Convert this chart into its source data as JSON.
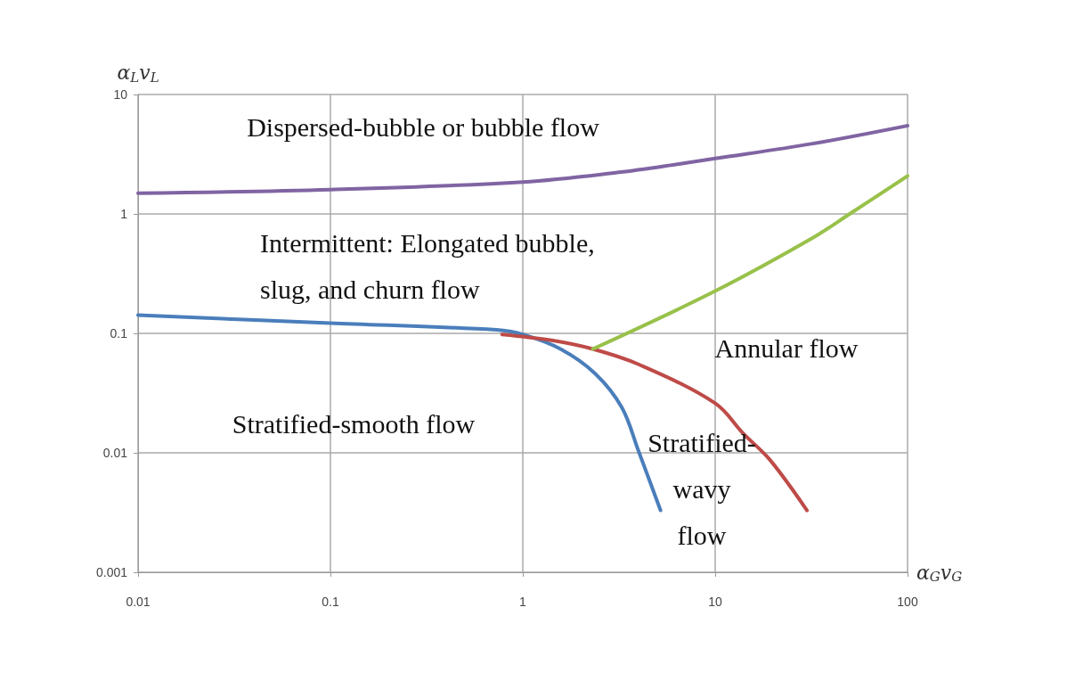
{
  "chart_data": {
    "type": "line",
    "xlabel": "α$_{G}$v$_{G}$",
    "ylabel": "α$_{L}$v$_{L}$",
    "log": "xy",
    "grid": true,
    "marker": "none",
    "line_style": "solid",
    "xlim": [
      0.01,
      100
    ],
    "ylim": [
      0.001,
      10
    ],
    "xticks": [
      0.01,
      0.1,
      1,
      10,
      100
    ],
    "yticks": [
      0.001,
      0.01,
      0.1,
      1,
      10
    ],
    "series": [
      {
        "color": "#8064a2",
        "x": [
          0.01,
          0.1,
          1,
          3.16,
          6.6,
          10,
          31.6,
          100
        ],
        "values": [
          1.49,
          1.6,
          1.85,
          2.23,
          2.63,
          2.91,
          3.86,
          5.48
        ]
      },
      {
        "color": "#4a7ebb",
        "x": [
          0.01,
          0.1,
          0.73,
          1,
          1.57,
          2.38,
          3.27,
          4,
          5.2
        ],
        "values": [
          0.142,
          0.122,
          0.107,
          0.098,
          0.074,
          0.046,
          0.024,
          0.0103,
          0.0033
        ]
      },
      {
        "color": "#be4b48",
        "x": [
          0.78,
          1.41,
          2.31,
          4,
          10,
          14,
          19.3,
          30
        ],
        "values": [
          0.098,
          0.0875,
          0.074,
          0.055,
          0.026,
          0.0145,
          0.0087,
          0.0033
        ]
      },
      {
        "color": "#98c14a",
        "x": [
          2.31,
          10,
          31.6,
          50,
          100
        ],
        "values": [
          0.074,
          0.226,
          0.62,
          1.0,
          2.08
        ]
      }
    ],
    "annotations": [
      "Dispersed-bubble or bubble flow",
      "Intermittent: Elongated bubble,\nslug, and churn flow",
      "Annular flow",
      "Stratified-smooth flow",
      "Stratified-\nwavy\nflow"
    ]
  }
}
